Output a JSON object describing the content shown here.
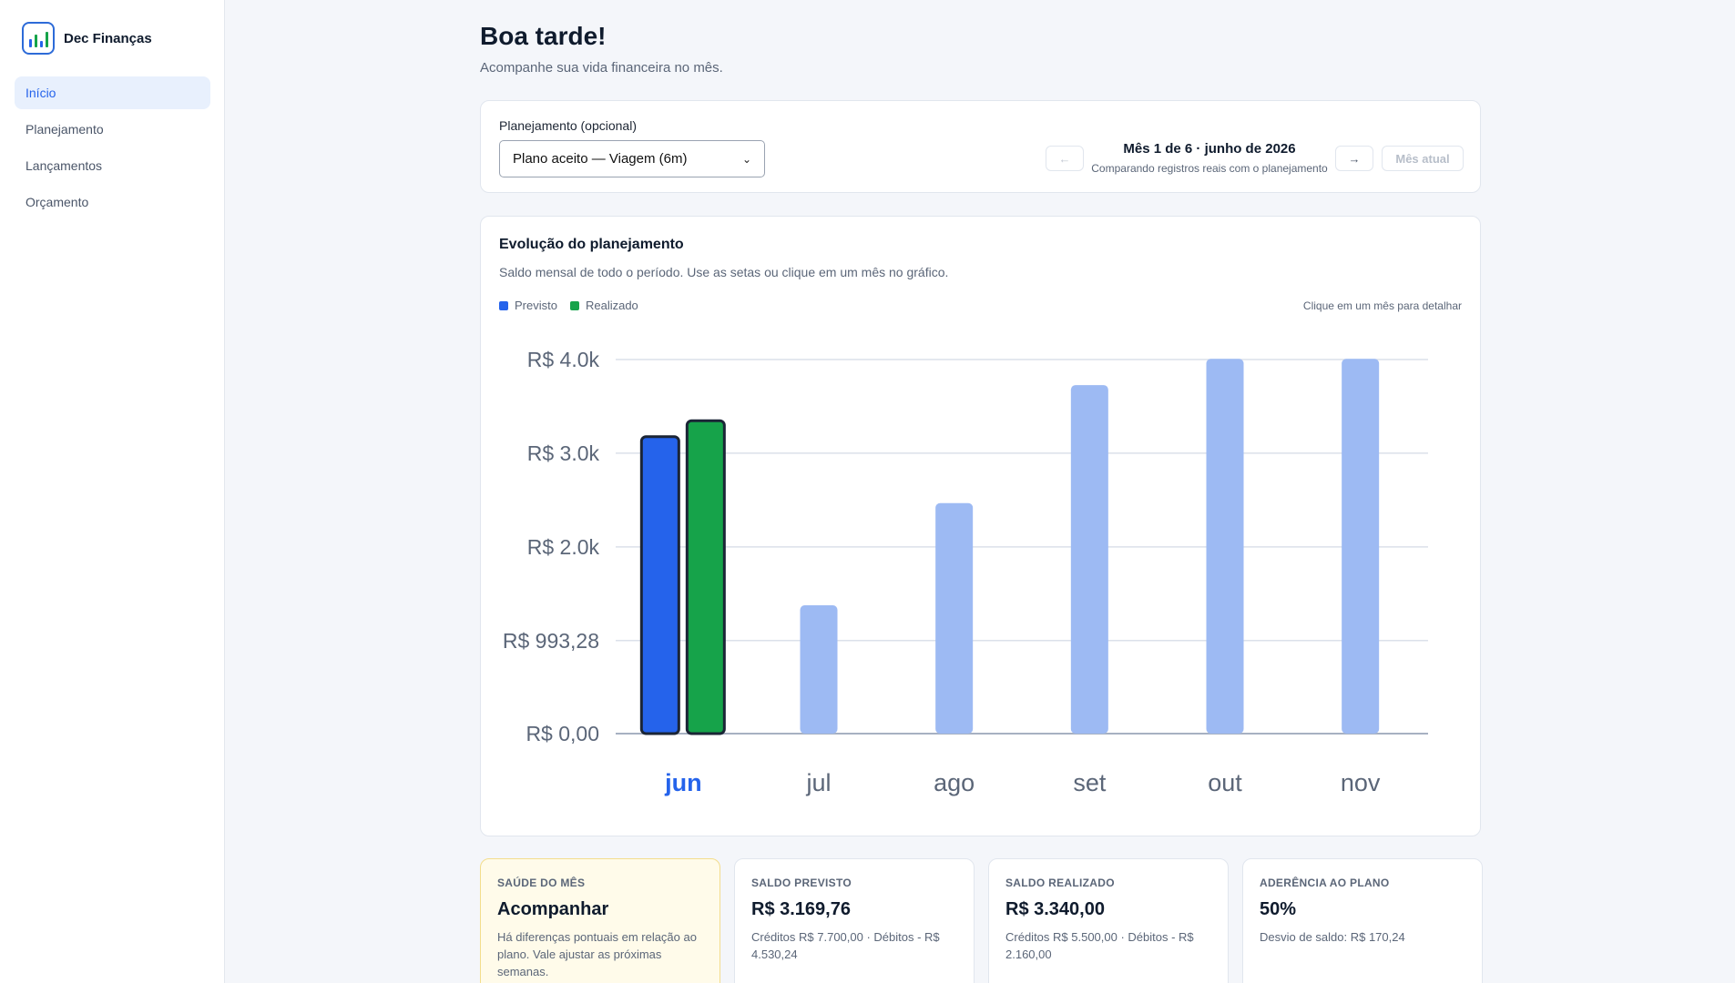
{
  "app": {
    "brand_name": "Dec Finanças",
    "logo_icon": "bar-chart-logo-icon",
    "accent": "#2563eb"
  },
  "sidebar": {
    "items": [
      {
        "label": "Início",
        "active": true
      },
      {
        "label": "Planejamento",
        "active": false
      },
      {
        "label": "Lançamentos",
        "active": false
      },
      {
        "label": "Orçamento",
        "active": false
      }
    ]
  },
  "header": {
    "title": "Boa tarde!",
    "subtitle": "Acompanhe sua vida financeira no mês."
  },
  "planning": {
    "label": "Planejamento (opcional)",
    "selected": "Plano aceito — Viagem (6m)",
    "prev_label": "←",
    "next_label": "→",
    "current_month_label": "Mês atual",
    "month_title": "Mês 1 de 6 · junho de 2026",
    "month_subtitle": "Comparando registros reais com o planejamento"
  },
  "chart_card": {
    "title": "Evolução do planejamento",
    "description": "Saldo mensal de todo o período. Use as setas ou clique em um mês no gráfico.",
    "hint": "Clique em um mês para detalhar"
  },
  "chart_data": {
    "type": "bar",
    "categories": [
      "jun",
      "jul",
      "ago",
      "set",
      "out",
      "nov"
    ],
    "selected_category": "jun",
    "series": [
      {
        "name": "Previsto",
        "color": "#2563eb",
        "faded_color": "#9dbaf3",
        "values": [
          3169.76,
          1370,
          2460,
          3720,
          4000,
          4000
        ]
      },
      {
        "name": "Realizado",
        "color": "#16a34a",
        "values": [
          3340.0,
          null,
          null,
          null,
          null,
          null
        ]
      }
    ],
    "y_ticks": [
      "R$ 0,00",
      "R$ 993,28",
      "R$ 2.0k",
      "R$ 3.0k",
      "R$ 4.0k"
    ],
    "y_tick_values": [
      0,
      993.28,
      1993.28,
      2993.28,
      3993.28
    ],
    "ylim": [
      0,
      3993.28
    ],
    "grid": true,
    "legend": "top-left"
  },
  "stats": [
    {
      "label": "SAÚDE DO MÊS",
      "value": "Acompanhar",
      "desc": "Há diferenças pontuais em relação ao plano. Vale ajustar as próximas semanas."
    },
    {
      "label": "SALDO PREVISTO",
      "value": "R$ 3.169,76",
      "desc": "Créditos R$ 7.700,00 · Débitos - R$ 4.530,24"
    },
    {
      "label": "SALDO REALIZADO",
      "value": "R$ 3.340,00",
      "desc": "Créditos R$ 5.500,00 · Débitos - R$ 2.160,00"
    },
    {
      "label": "ADERÊNCIA AO PLANO",
      "value": "50%",
      "desc": "Desvio de saldo: R$ 170,24"
    }
  ]
}
